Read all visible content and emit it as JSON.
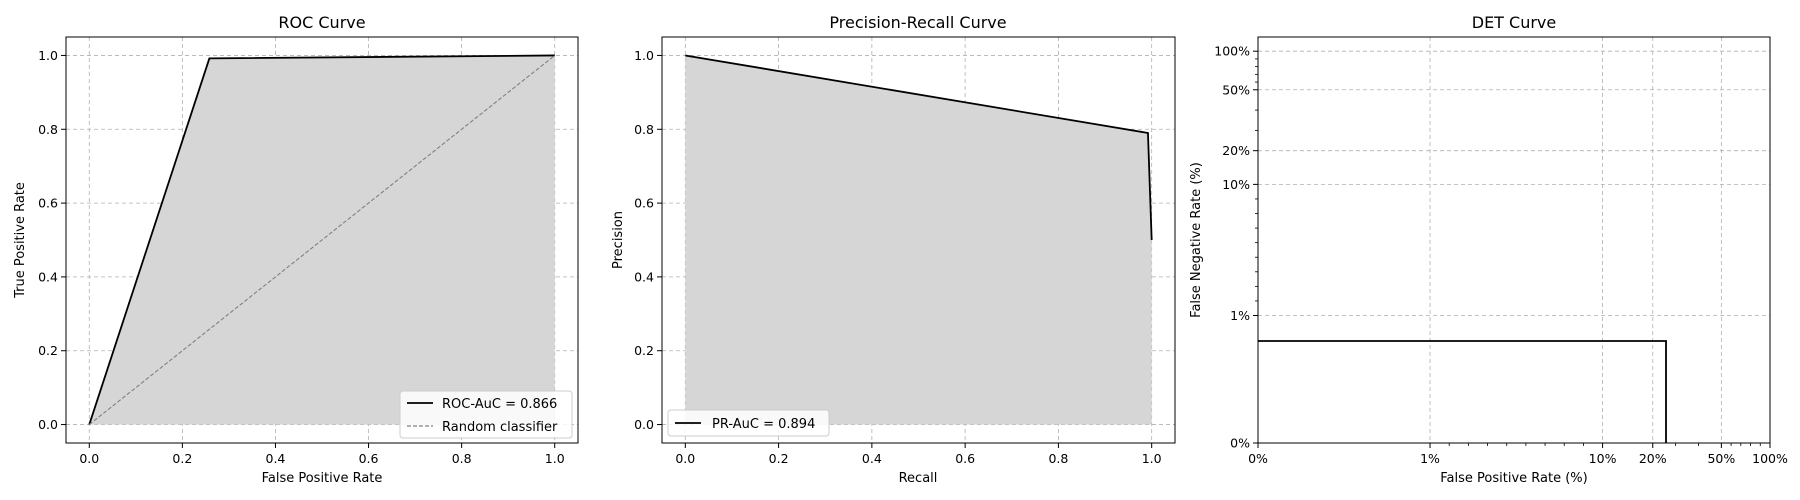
{
  "chart_data": [
    {
      "id": "roc",
      "type": "line",
      "title": "ROC Curve",
      "xlabel": "False Positive Rate",
      "ylabel": "True Positive Rate",
      "xlim": [
        -0.05,
        1.05
      ],
      "ylim": [
        -0.05,
        1.05
      ],
      "xticks": [
        0.0,
        0.2,
        0.4,
        0.6,
        0.8,
        1.0
      ],
      "yticks": [
        0.0,
        0.2,
        0.4,
        0.6,
        0.8,
        1.0
      ],
      "xtick_labels": [
        "0.0",
        "0.2",
        "0.4",
        "0.6",
        "0.8",
        "1.0"
      ],
      "ytick_labels": [
        "0.0",
        "0.2",
        "0.4",
        "0.6",
        "0.8",
        "1.0"
      ],
      "grid": true,
      "legend_position": "lower-right",
      "series": [
        {
          "name": "ROC-AuC = 0.866",
          "style": "solid",
          "fill": true,
          "color": "#000000",
          "x": [
            0.0,
            0.258,
            1.0
          ],
          "y": [
            0.0,
            0.992,
            1.0
          ]
        },
        {
          "name": "Random classifier",
          "style": "dashed",
          "fill": false,
          "color": "#808080",
          "x": [
            0.0,
            1.0
          ],
          "y": [
            0.0,
            1.0
          ]
        }
      ]
    },
    {
      "id": "pr",
      "type": "line",
      "title": "Precision-Recall Curve",
      "xlabel": "Recall",
      "ylabel": "Precision",
      "xlim": [
        -0.05,
        1.05
      ],
      "ylim": [
        -0.05,
        1.05
      ],
      "xticks": [
        0.0,
        0.2,
        0.4,
        0.6,
        0.8,
        1.0
      ],
      "yticks": [
        0.0,
        0.2,
        0.4,
        0.6,
        0.8,
        1.0
      ],
      "xtick_labels": [
        "0.0",
        "0.2",
        "0.4",
        "0.6",
        "0.8",
        "1.0"
      ],
      "ytick_labels": [
        "0.0",
        "0.2",
        "0.4",
        "0.6",
        "0.8",
        "1.0"
      ],
      "grid": true,
      "legend_position": "lower-left",
      "series": [
        {
          "name": "PR-AuC = 0.894",
          "style": "solid",
          "fill": true,
          "color": "#000000",
          "x": [
            0.0,
            0.992,
            1.0
          ],
          "y": [
            1.0,
            0.79,
            0.5
          ]
        }
      ]
    },
    {
      "id": "det",
      "type": "line",
      "title": "DET Curve",
      "xlabel": "False Positive Rate (%)",
      "ylabel": "False Negative Rate (%)",
      "xlim": [
        0.0,
        100.0
      ],
      "ylim": [
        0.0,
        100.0
      ],
      "xticks": [
        0.0,
        1.0,
        10.0,
        20.0,
        50.0,
        100.0
      ],
      "yticks": [
        0.0,
        1.0,
        10.0,
        20.0,
        50.0,
        100.0
      ],
      "xtick_labels": [
        "0%",
        "1%",
        "10%",
        "20%",
        "50%",
        "100%"
      ],
      "ytick_labels": [
        "0%",
        "1%",
        "10%",
        "20%",
        "50%",
        "100%"
      ],
      "grid": true,
      "series": [
        {
          "style": "solid",
          "fill": false,
          "color": "#000000",
          "x": [
            0.0,
            25.8,
            25.8
          ],
          "y": [
            0.8,
            0.8,
            0.0
          ]
        }
      ]
    }
  ],
  "colors": {
    "fill": "#d6d6d6",
    "grid": "#b0b0b0",
    "line": "#000000",
    "random": "#808080"
  }
}
